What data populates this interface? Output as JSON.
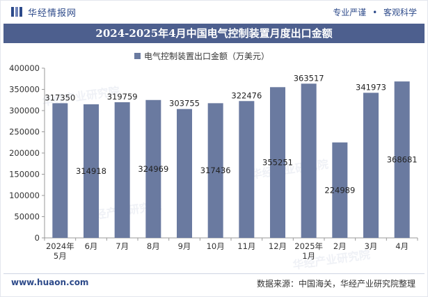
{
  "header": {
    "brand": "华经情报网",
    "motto_left": "专业严谨",
    "motto_sep": "•",
    "motto_right": "客观科学"
  },
  "title": "2024-2025年4月中国电气控制装置月度出口金额",
  "footer": {
    "site": "www.huaon.com",
    "source": "数据来源：中国海关，华经产业研究院整理"
  },
  "watermark": "华经产业研究院",
  "colors": {
    "bar": "#6a7aa0",
    "title_bg": "#4d5f8e",
    "brand": "#2d4a8a"
  },
  "chart_data": {
    "type": "bar",
    "legend": "电气控制装置出口金额（万美元）",
    "categories": [
      [
        "2024年",
        "5月"
      ],
      [
        "6月"
      ],
      [
        "7月"
      ],
      [
        "8月"
      ],
      [
        "9月"
      ],
      [
        "10月"
      ],
      [
        "11月"
      ],
      [
        "12月"
      ],
      [
        "2025年",
        "1月"
      ],
      [
        "2月"
      ],
      [
        "3月"
      ],
      [
        "4月"
      ]
    ],
    "values": [
      317350,
      314918,
      319759,
      324969,
      303755,
      317436,
      322476,
      355251,
      363517,
      224989,
      341973,
      368681
    ],
    "label_pos": [
      "top",
      "mid",
      "top",
      "mid",
      "top",
      "mid",
      "top",
      "mid",
      "top",
      "mid",
      "top",
      "mid"
    ],
    "y_ticks": [
      "0",
      "50000",
      "100000",
      "150000",
      "200000",
      "250000",
      "300000",
      "350000",
      "400000"
    ],
    "ylim": [
      0,
      400000
    ]
  }
}
